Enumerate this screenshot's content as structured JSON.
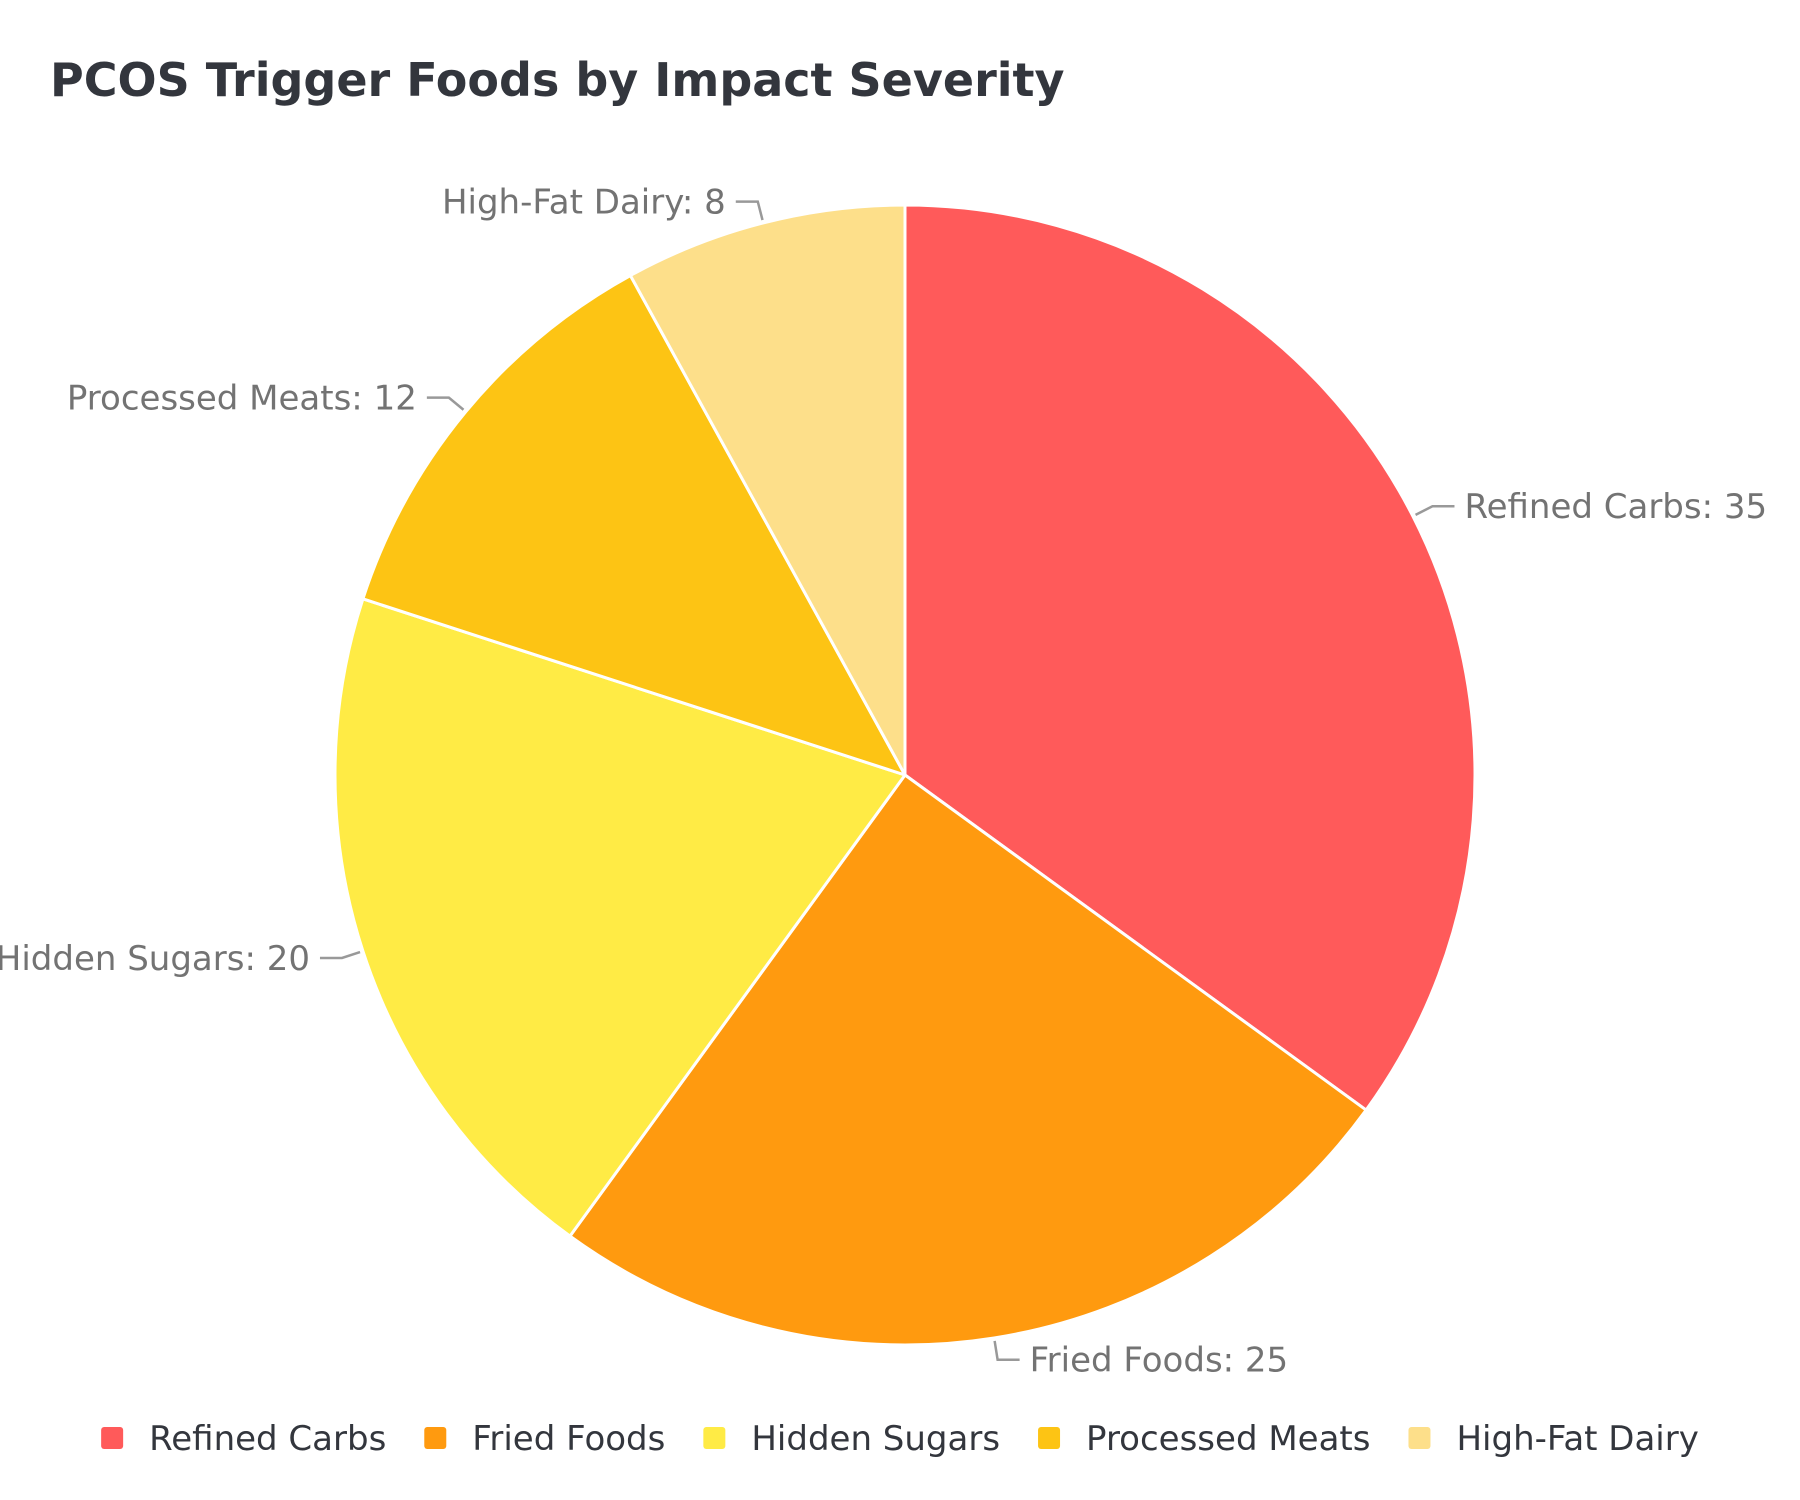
{
  "chart_data": {
    "type": "pie",
    "title": "PCOS Trigger Foods by Impact Severity",
    "categories": [
      "Refined Carbs",
      "Fried Foods",
      "Hidden Sugars",
      "Processed Meats",
      "High-Fat Dairy"
    ],
    "values": [
      35,
      25,
      20,
      12,
      8
    ],
    "slice_labels": [
      "Refined Carbs: 35",
      "Fried Foods: 25",
      "Hidden Sugars: 20",
      "Processed Meats: 12",
      "High-Fat Dairy: 8"
    ],
    "colors": [
      "#ff5a5a",
      "#ff9a0f",
      "#ffeb45",
      "#fdc414",
      "#fddf8a"
    ],
    "legend_position": "bottom",
    "start_angle": "12 o'clock",
    "direction": "clockwise"
  },
  "style": {
    "title_color": "#33363d",
    "label_color": "#737373",
    "leader_color": "#999999",
    "legend_text_color": "#33363d",
    "slice_border_color": "#ffffff"
  }
}
